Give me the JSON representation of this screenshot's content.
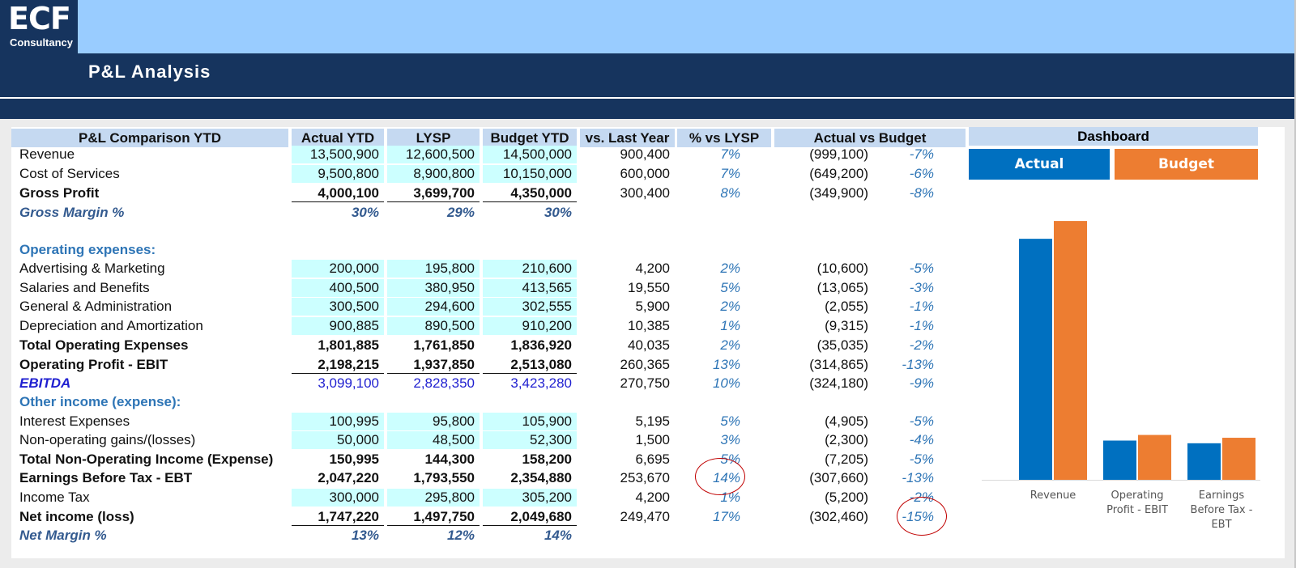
{
  "logo": {
    "big": "ECF",
    "small": "Consultancy"
  },
  "title": "P&L Analysis",
  "headers": {
    "label": "P&L Comparison YTD",
    "actual": "Actual YTD",
    "lysp": "LYSP",
    "budget": "Budget YTD",
    "vs_last_year": "vs. Last Year",
    "pct_vs_lysp": "% vs LYSP",
    "actual_vs_budget": "Actual vs Budget"
  },
  "rows": [
    {
      "label": "Revenue",
      "actual": "13,500,900",
      "lysp": "12,600,500",
      "budget": "14,500,000",
      "vs": "900,400",
      "pct": "7%",
      "avb": "(999,100)",
      "avb_pct": "-7%"
    },
    {
      "label": "Cost of Services",
      "actual": "9,500,800",
      "lysp": "8,900,800",
      "budget": "10,150,000",
      "vs": "600,000",
      "pct": "7%",
      "avb": "(649,200)",
      "avb_pct": "-6%"
    },
    {
      "label": "Gross Profit",
      "actual": "4,000,100",
      "lysp": "3,699,700",
      "budget": "4,350,000",
      "vs": "300,400",
      "pct": "8%",
      "avb": "(349,900)",
      "avb_pct": "-8%"
    },
    {
      "label": "Gross Margin %",
      "actual": "30%",
      "lysp": "29%",
      "budget": "30%"
    },
    {
      "label": "Operating expenses:"
    },
    {
      "label": "Advertising & Marketing",
      "actual": "200,000",
      "lysp": "195,800",
      "budget": "210,600",
      "vs": "4,200",
      "pct": "2%",
      "avb": "(10,600)",
      "avb_pct": "-5%"
    },
    {
      "label": "Salaries and Benefits",
      "actual": "400,500",
      "lysp": "380,950",
      "budget": "413,565",
      "vs": "19,550",
      "pct": "5%",
      "avb": "(13,065)",
      "avb_pct": "-3%"
    },
    {
      "label": "General & Administration",
      "actual": "300,500",
      "lysp": "294,600",
      "budget": "302,555",
      "vs": "5,900",
      "pct": "2%",
      "avb": "(2,055)",
      "avb_pct": "-1%"
    },
    {
      "label": "Depreciation and Amortization",
      "actual": "900,885",
      "lysp": "890,500",
      "budget": "910,200",
      "vs": "10,385",
      "pct": "1%",
      "avb": "(9,315)",
      "avb_pct": "-1%"
    },
    {
      "label": "Total Operating Expenses",
      "actual": "1,801,885",
      "lysp": "1,761,850",
      "budget": "1,836,920",
      "vs": "40,035",
      "pct": "2%",
      "avb": "(35,035)",
      "avb_pct": "-2%"
    },
    {
      "label": "Operating Profit - EBIT",
      "actual": "2,198,215",
      "lysp": "1,937,850",
      "budget": "2,513,080",
      "vs": "260,365",
      "pct": "13%",
      "avb": "(314,865)",
      "avb_pct": "-13%"
    },
    {
      "label": "EBITDA",
      "actual": "3,099,100",
      "lysp": "2,828,350",
      "budget": "3,423,280",
      "vs": "270,750",
      "pct": "10%",
      "avb": "(324,180)",
      "avb_pct": "-9%"
    },
    {
      "label": "Other income (expense):"
    },
    {
      "label": "Interest Expenses",
      "actual": "100,995",
      "lysp": "95,800",
      "budget": "105,900",
      "vs": "5,195",
      "pct": "5%",
      "avb": "(4,905)",
      "avb_pct": "-5%"
    },
    {
      "label": "Non-operating gains/(losses)",
      "actual": "50,000",
      "lysp": "48,500",
      "budget": "52,300",
      "vs": "1,500",
      "pct": "3%",
      "avb": "(2,300)",
      "avb_pct": "-4%"
    },
    {
      "label": "Total Non-Operating Income (Expense)",
      "actual": "150,995",
      "lysp": "144,300",
      "budget": "158,200",
      "vs": "6,695",
      "pct": "5%",
      "avb": "(7,205)",
      "avb_pct": "-5%"
    },
    {
      "label": "Earnings Before Tax - EBT",
      "actual": "2,047,220",
      "lysp": "1,793,550",
      "budget": "2,354,880",
      "vs": "253,670",
      "pct": "14%",
      "avb": "(307,660)",
      "avb_pct": "-13%"
    },
    {
      "label": "Income Tax",
      "actual": "300,000",
      "lysp": "295,800",
      "budget": "305,200",
      "vs": "4,200",
      "pct": "1%",
      "avb": "(5,200)",
      "avb_pct": "-2%"
    },
    {
      "label": "Net income (loss)",
      "actual": "1,747,220",
      "lysp": "1,497,750",
      "budget": "2,049,680",
      "vs": "249,470",
      "pct": "17%",
      "avb": "(302,460)",
      "avb_pct": "-15%"
    },
    {
      "label": "Net Margin %",
      "actual": "13%",
      "lysp": "12%",
      "budget": "14%"
    }
  ],
  "dashboard": {
    "title": "Dashboard",
    "actual_label": "Actual",
    "budget_label": "Budget",
    "actual_color": "#0070c0",
    "budget_color": "#ed7d31"
  },
  "chart_data": {
    "type": "bar",
    "categories": [
      "Revenue",
      "Operating Profit - EBIT",
      "Earnings Before Tax - EBT"
    ],
    "series": [
      {
        "name": "Actual",
        "values": [
          13500900,
          2198215,
          2047220
        ]
      },
      {
        "name": "Budget",
        "values": [
          14500000,
          2513080,
          2354880
        ]
      }
    ],
    "ylim": [
      0,
      16000000
    ],
    "grid": false,
    "legend": "top"
  }
}
